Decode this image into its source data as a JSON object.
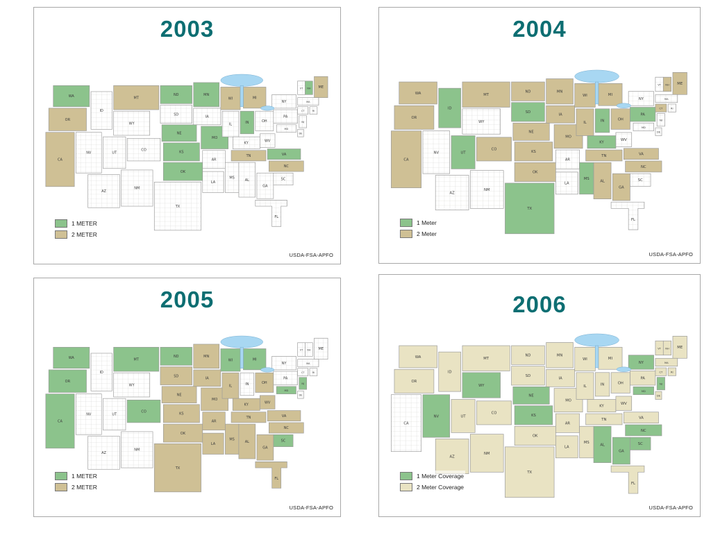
{
  "page": {
    "background": "#ffffff"
  },
  "colors": {
    "title_teal": "#0d6e72",
    "one_meter_green": "#8cc38c",
    "two_meter_tan": "#cfc095",
    "two_meter_tan_2006": "#e9e3c3",
    "lake_blue": "#a8d7f2",
    "uncovered_white": "#ffffff",
    "state_border_gray": "#9a9a9a"
  },
  "map": {
    "state_labels": [
      "WA",
      "OR",
      "CA",
      "ID",
      "NV",
      "UT",
      "AZ",
      "MT",
      "WY",
      "CO",
      "NM",
      "ND",
      "SD",
      "NE",
      "KS",
      "OK",
      "TX",
      "MN",
      "IA",
      "MO",
      "AR",
      "LA",
      "WI",
      "IL",
      "MS",
      "MI",
      "IN",
      "OH",
      "KY",
      "TN",
      "AL",
      "GA",
      "FL",
      "WV",
      "VA",
      "NC",
      "SC",
      "PA",
      "NY",
      "MD",
      "DE",
      "NJ",
      "VT",
      "NH",
      "ME",
      "MA",
      "CT",
      "RI"
    ]
  },
  "panels": [
    {
      "title": "2003",
      "legend_one": "1 METER",
      "legend_two": "2 METER",
      "attribution": "USDA-FSA-APFO",
      "one_color": "one_meter_green",
      "two_color": "two_meter_tan",
      "one_meter": [
        "WA",
        "ND",
        "MN",
        "NE",
        "KS",
        "OK",
        "MO",
        "IN",
        "VA",
        "NH"
      ],
      "two_meter": [
        "OR",
        "CA",
        "MT",
        "WI",
        "MI",
        "TN",
        "NC",
        "ME"
      ]
    },
    {
      "title": "2004",
      "legend_one": "1 Meter",
      "legend_two": "2 Meter",
      "attribution": "USDA-FSA-APFO",
      "one_color": "one_meter_green",
      "two_color": "two_meter_tan",
      "one_meter": [
        "ID",
        "UT",
        "SD",
        "TX",
        "IN",
        "KY",
        "PA",
        "MS"
      ],
      "two_meter": [
        "WA",
        "OR",
        "CA",
        "MT",
        "CO",
        "ND",
        "MN",
        "NE",
        "KS",
        "OK",
        "IA",
        "MO",
        "WI",
        "IL",
        "MI",
        "OH",
        "TN",
        "VA",
        "NC",
        "AL",
        "GA",
        "ME",
        "NH",
        "CT"
      ]
    },
    {
      "title": "2005",
      "legend_one": "1 METER",
      "legend_two": "2 METER",
      "attribution": "USDA-FSA-APFO",
      "one_color": "one_meter_green",
      "two_color": "two_meter_tan",
      "one_meter": [
        "WA",
        "OR",
        "CA",
        "MT",
        "ND",
        "CO",
        "WI",
        "MI",
        "SC",
        "MD",
        "NJ"
      ],
      "two_meter": [
        "SD",
        "NE",
        "KS",
        "OK",
        "TX",
        "MN",
        "IA",
        "MO",
        "IL",
        "AR",
        "LA",
        "MS",
        "AL",
        "GA",
        "FL",
        "TN",
        "KY",
        "OH",
        "WV",
        "VA",
        "NC"
      ]
    },
    {
      "title": "2006",
      "legend_one": "1 Meter Coverage",
      "legend_two": "2 Meter Coverage",
      "attribution": "USDA-FSA-APFO",
      "one_color": "one_meter_green",
      "two_color": "two_meter_tan_2006",
      "one_meter": [
        "NV",
        "WY",
        "NE",
        "KS",
        "AL",
        "GA",
        "SC",
        "NC",
        "NY",
        "NJ",
        "MD"
      ],
      "two_meter": [
        "WA",
        "OR",
        "ID",
        "MT",
        "UT",
        "AZ",
        "CO",
        "NM",
        "ND",
        "SD",
        "MN",
        "IA",
        "MO",
        "OK",
        "TX",
        "AR",
        "LA",
        "MS",
        "WI",
        "MI",
        "IL",
        "IN",
        "OH",
        "KY",
        "TN",
        "VA",
        "WV",
        "PA",
        "FL",
        "ME",
        "NH",
        "VT",
        "MA",
        "CT",
        "RI",
        "DE"
      ]
    }
  ]
}
